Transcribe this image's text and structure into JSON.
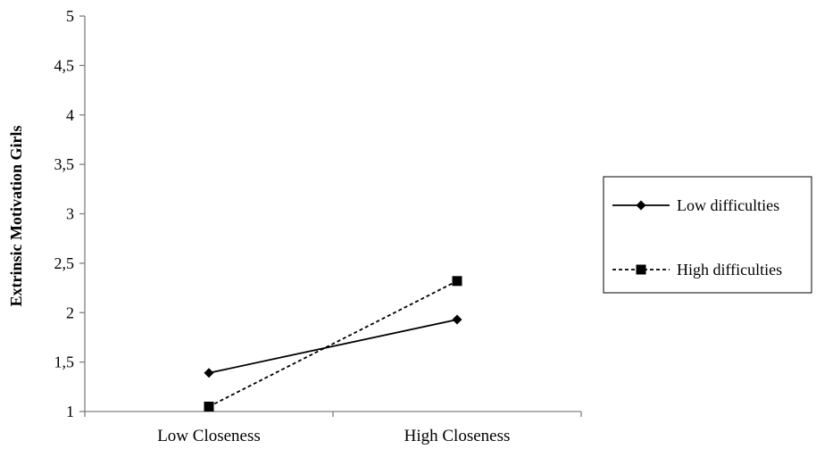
{
  "chart_data": {
    "type": "line",
    "categories": [
      "Low Closeness",
      "High Closeness"
    ],
    "series": [
      {
        "name": "Low difficulties",
        "values": [
          1.39,
          1.93
        ],
        "marker": "diamond",
        "dash": "solid",
        "color": "#000000"
      },
      {
        "name": "High difficulties",
        "values": [
          1.05,
          2.32
        ],
        "marker": "square",
        "dash": "dashed",
        "color": "#000000"
      }
    ],
    "title": "",
    "xlabel": "",
    "ylabel": "Extrinsic Motivation  Girls",
    "ylim": [
      1,
      5
    ],
    "yticks": [
      1,
      1.5,
      2,
      2.5,
      3,
      3.5,
      4,
      4.5,
      5
    ],
    "ytick_labels": [
      "1",
      "1,5",
      "2",
      "2,5",
      "3",
      "3,5",
      "4",
      "4,5",
      "5"
    ],
    "grid": false,
    "legend": "right"
  }
}
